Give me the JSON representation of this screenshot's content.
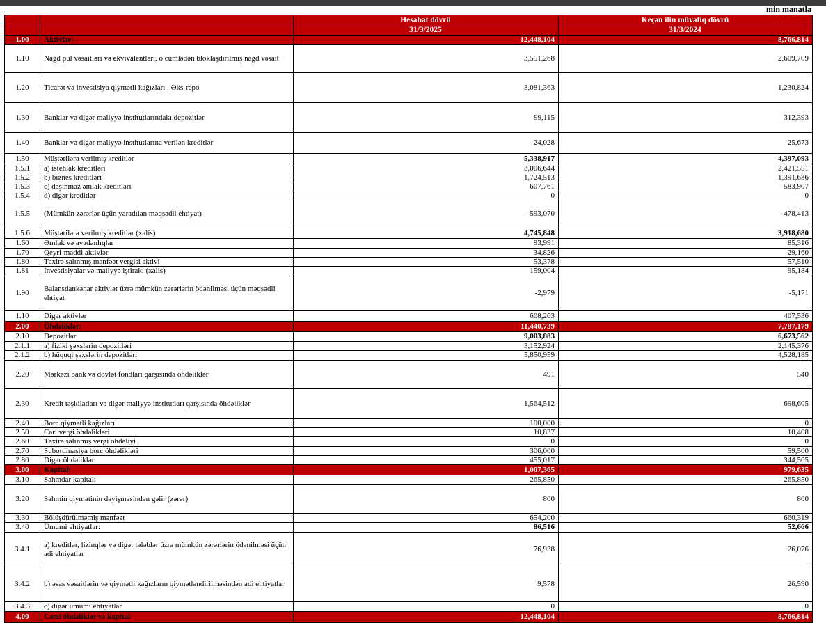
{
  "unit_note": "min manatla",
  "colors": {
    "accent_red": "#C00000",
    "top_bar": "#3D3D3D"
  },
  "header": {
    "current_period": {
      "title": "Hesabat dövrü",
      "date": "31/3/2025"
    },
    "previous_period": {
      "title": "Keçən ilin müvafiq dövrü",
      "date": "31/3/2024"
    }
  },
  "table": {
    "rows": [
      {
        "code": "1.00",
        "label": "Aktivlər:",
        "v1": "12,448,104",
        "v2": "8,766,814",
        "type": "section",
        "h": 13
      },
      {
        "code": "1.10",
        "label": "Nağd pul vəsaitləri və  ekvivalentləri, o cümlədən bloklaşdırılmış nağd vəsait",
        "v1": "3,551,268",
        "v2": "2,609,709",
        "type": "item",
        "h": 41
      },
      {
        "code": "1.20",
        "label": "Ticarət və investisiya qiymətli kağızları , Əks-repo",
        "v1": "3,081,363",
        "v2": "1,230,824",
        "type": "item",
        "h": 43
      },
      {
        "code": "1.30",
        "label": "Banklar və digər maliyyə institutlarındakı depozitlər",
        "v1": "99,115",
        "v2": "312,393",
        "type": "item",
        "h": 43
      },
      {
        "code": "1.40",
        "label": "Banklar və digər maliyyə institutlarına verilən kreditlər",
        "v1": "24,028",
        "v2": "25,673",
        "type": "item",
        "h": 30
      },
      {
        "code": "1.50",
        "label": "Müştərilərə verilmiş kreditlər",
        "v1": "5,338,917",
        "v2": "4,397,093",
        "type": "subtotal",
        "h": 15
      },
      {
        "code": "1.5.1",
        "label": "a) istehlak kreditləri",
        "v1": "3,006,644",
        "v2": "2,421,551",
        "type": "item",
        "h": 13
      },
      {
        "code": "1.5.2",
        "label": "b) biznes kreditləri",
        "v1": "1,724,513",
        "v2": "1,391,636",
        "type": "item",
        "h": 13
      },
      {
        "code": "1.5.3",
        "label": "c) daşınmaz əmlak kreditləri",
        "v1": "607,761",
        "v2": "583,907",
        "type": "item",
        "h": 13
      },
      {
        "code": "1.5.4",
        "label": "d) digər kreditlər",
        "v1": "0",
        "v2": "0",
        "type": "item",
        "h": 13
      },
      {
        "code": "1.5.5",
        "label": "(Mümkün zərərlər üçün yaradılan məqsədli ehtiyat)",
        "v1": "-593,070",
        "v2": "-478,413",
        "type": "item",
        "h": 40
      },
      {
        "code": "1.5.6",
        "label": "Müştərilərə verilmiş kreditlər (xalis)",
        "v1": "4,745,848",
        "v2": "3,918,680",
        "type": "subtotal",
        "h": 15
      },
      {
        "code": "1.60",
        "label": "Əmlak və avadanlıqlar",
        "v1": "93,991",
        "v2": "85,316",
        "type": "item",
        "h": 14
      },
      {
        "code": "1.70",
        "label": "Qeyri-maddi aktivlər",
        "v1": "34,826",
        "v2": "29,160",
        "type": "item",
        "h": 13
      },
      {
        "code": "1.80",
        "label": "Təxirə salınmış mənfəət vergisi aktivi",
        "v1": "53,378",
        "v2": "57,510",
        "type": "item",
        "h": 13
      },
      {
        "code": "1.81",
        "label": "İnvestisiyalar və maliyyə iştirakı (xalis)",
        "v1": "159,004",
        "v2": "95,184",
        "type": "item",
        "h": 14
      },
      {
        "code": "1.90",
        "label": "Balansdankənar aktivlər üzrə mümkün zərərlərin ödənilməsi üçün məqsədli ehtiyat",
        "v1": "-2,979",
        "v2": "-5,171",
        "type": "item",
        "h": 50
      },
      {
        "code": "1.10",
        "label": "Digər aktivlər",
        "v1": "608,263",
        "v2": "407,536",
        "type": "item",
        "h": 15
      },
      {
        "code": "2.00",
        "label": "Öhdəliklər:",
        "v1": "11,440,739",
        "v2": "7,787,179",
        "type": "section",
        "h": 15
      },
      {
        "code": "2.10",
        "label": "Depozitlər",
        "v1": "9,003,883",
        "v2": "6,673,562",
        "type": "subtotal",
        "h": 14
      },
      {
        "code": "2.1.1",
        "label": "a) fiziki şəxslərin depozitləri",
        "v1": "3,152,924",
        "v2": "2,145,376",
        "type": "item",
        "h": 13
      },
      {
        "code": "2.1.2",
        "label": "b) hüquqi şəxslərin depozitləri",
        "v1": "5,850,959",
        "v2": "4,528,185",
        "type": "item",
        "h": 14
      },
      {
        "code": "2.20",
        "label": "Mərkəzi bank və dövlət fondları qarşısında öhdəliklər",
        "v1": "491",
        "v2": "540",
        "type": "item",
        "h": 41
      },
      {
        "code": "2.30",
        "label": "Kredit təşkilatları və digər maliyyə institutları qarşısında öhdəliklər",
        "v1": "1,564,512",
        "v2": "698,605",
        "type": "item",
        "h": 43
      },
      {
        "code": "2.40",
        "label": "Borc qiymətli kağızları",
        "v1": "100,000",
        "v2": "0",
        "type": "item",
        "h": 13
      },
      {
        "code": "2.50",
        "label": "Cari vergi öhdəlikləri",
        "v1": "10,837",
        "v2": "10,408",
        "type": "item",
        "h": 13
      },
      {
        "code": "2.60",
        "label": "Təxirə salınmış vergi öhdəliyi",
        "v1": "0",
        "v2": "0",
        "type": "item",
        "h": 14
      },
      {
        "code": "2.70",
        "label": "Subordinasiya borc öhdəlikləri",
        "v1": "306,000",
        "v2": "59,500",
        "type": "item",
        "h": 13
      },
      {
        "code": "2.80",
        "label": "Digər öhdəliklər",
        "v1": "455,017",
        "v2": "344,565",
        "type": "item",
        "h": 13
      },
      {
        "code": "3.00",
        "label": "Kapital:",
        "v1": "1,007,365",
        "v2": "979,635",
        "type": "section",
        "h": 15
      },
      {
        "code": "3.10",
        "label": "Səhmdar kapitalı",
        "v1": "265,850",
        "v2": "265,850",
        "type": "item",
        "h": 14
      },
      {
        "code": "3.20",
        "label": "Səhmin qiymətinin dəyişməsindən gəlir (zərər)",
        "v1": "800",
        "v2": "800",
        "type": "item",
        "h": 41
      },
      {
        "code": "3.30",
        "label": "Bölüşdürülməmiş mənfəət",
        "v1": "654,200",
        "v2": "660,319",
        "type": "item",
        "h": 13
      },
      {
        "code": "3.40",
        "label": "Ümumi ehtiyatlar:",
        "v1": "86,516",
        "v2": "52,666",
        "type": "subtotal",
        "h": 14
      },
      {
        "code": "3.4.1",
        "label": "a) kreditlər, lizinqlər və digər tələblər üzrə mümkün zərərlərin ödənilməsi üçün adi ehtiyatlar",
        "v1": "76,938",
        "v2": "26,076",
        "type": "item",
        "h": 50
      },
      {
        "code": "3.4.2",
        "label": "b) əsas vəsaitlərin və qiymətli kağızların qiymətləndirilməsindən adi ehtiyatlar",
        "v1": "9,578",
        "v2": "26,590",
        "type": "item",
        "h": 50
      },
      {
        "code": "3.4.3",
        "label": "c) digər ümumi ehtiyatlar",
        "v1": "0",
        "v2": "0",
        "type": "item",
        "h": 14
      },
      {
        "code": "4.00",
        "label": "Cəmi öhdəliklər və kapital",
        "v1": "12,448,104",
        "v2": "8,766,814",
        "type": "section",
        "h": 15
      }
    ]
  }
}
